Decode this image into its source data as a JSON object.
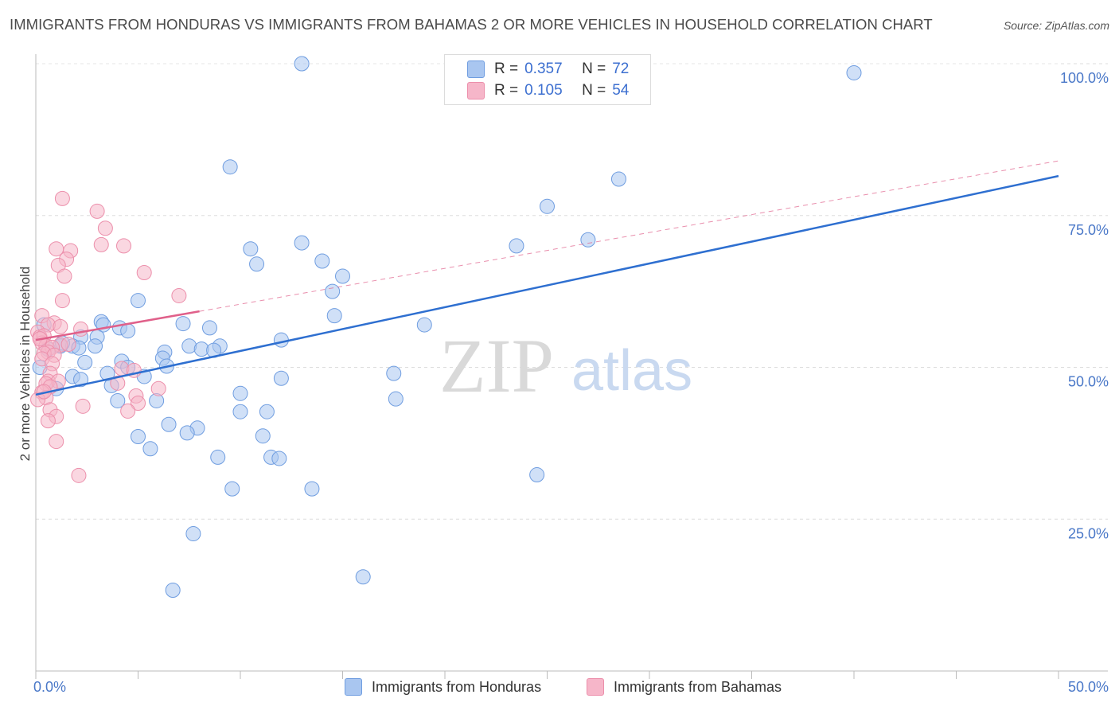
{
  "title": "IMMIGRANTS FROM HONDURAS VS IMMIGRANTS FROM BAHAMAS 2 OR MORE VEHICLES IN HOUSEHOLD CORRELATION CHART",
  "source": "Source: ZipAtlas.com",
  "watermark": {
    "zip": "ZIP",
    "atlas": "atlas"
  },
  "legend": {
    "r_label": "R =",
    "n_label": "N =",
    "rows": [
      {
        "r": "0.357",
        "n": "72"
      },
      {
        "r": "0.105",
        "n": "54"
      }
    ]
  },
  "colors": {
    "honduras_fill": "#a9c6f0",
    "honduras_stroke": "#6f9de0",
    "honduras_line": "#2e6fd0",
    "bahamas_fill": "#f6b6c9",
    "bahamas_stroke": "#ec8fab",
    "bahamas_line": "#e0608a",
    "tick_text": "#4a78c8"
  },
  "chart_data": {
    "type": "scatter",
    "title": "IMMIGRANTS FROM HONDURAS VS IMMIGRANTS FROM BAHAMAS 2 OR MORE VEHICLES IN HOUSEHOLD CORRELATION CHART",
    "xlabel": "",
    "ylabel": "2 or more Vehicles in Household",
    "xlim": [
      0,
      50
    ],
    "ylim": [
      0,
      105
    ],
    "x_tick_labels": [
      "0.0%",
      "50.0%"
    ],
    "y_ticks": [
      25,
      50,
      75,
      100
    ],
    "y_tick_labels": [
      "25.0%",
      "50.0%",
      "75.0%",
      "100.0%"
    ],
    "grid": true,
    "series": [
      {
        "name": "Immigrants from Honduras",
        "r": 0.357,
        "n": 72,
        "trend": {
          "x": [
            0,
            50
          ],
          "y": [
            45.5,
            81.5
          ],
          "style": "solid"
        },
        "points": [
          [
            13,
            100
          ],
          [
            40,
            98.5
          ],
          [
            9.5,
            83
          ],
          [
            28.5,
            81
          ],
          [
            25,
            76.5
          ],
          [
            27,
            71
          ],
          [
            13,
            70.5
          ],
          [
            23.5,
            70
          ],
          [
            10.5,
            69.5
          ],
          [
            14,
            67.5
          ],
          [
            10.8,
            67
          ],
          [
            15,
            65
          ],
          [
            14.5,
            62.5
          ],
          [
            5,
            61
          ],
          [
            14.6,
            58.5
          ],
          [
            3.2,
            57.5
          ],
          [
            7.2,
            57.2
          ],
          [
            3.3,
            57
          ],
          [
            4.1,
            56.5
          ],
          [
            8.5,
            56.5
          ],
          [
            19,
            57
          ],
          [
            4.5,
            56
          ],
          [
            2.2,
            55
          ],
          [
            3,
            55
          ],
          [
            12,
            54.5
          ],
          [
            2.9,
            53.5
          ],
          [
            7.5,
            53.5
          ],
          [
            9,
            53.5
          ],
          [
            8.1,
            53
          ],
          [
            8.7,
            52.8
          ],
          [
            1.2,
            53.5
          ],
          [
            1.8,
            53.5
          ],
          [
            2.1,
            53.2
          ],
          [
            6.3,
            52.5
          ],
          [
            4.2,
            51
          ],
          [
            6.2,
            51.5
          ],
          [
            2.4,
            50.8
          ],
          [
            6.4,
            50.2
          ],
          [
            4.5,
            50
          ],
          [
            3.5,
            49
          ],
          [
            5.3,
            48.5
          ],
          [
            12,
            48.2
          ],
          [
            17.5,
            49
          ],
          [
            1.8,
            48.5
          ],
          [
            2.2,
            48
          ],
          [
            3.7,
            47
          ],
          [
            1,
            46.5
          ],
          [
            10,
            45.7
          ],
          [
            5.9,
            44.5
          ],
          [
            17.6,
            44.8
          ],
          [
            4,
            44.5
          ],
          [
            10,
            42.7
          ],
          [
            11.3,
            42.7
          ],
          [
            6.5,
            40.6
          ],
          [
            7.9,
            40
          ],
          [
            7.4,
            39.2
          ],
          [
            5,
            38.6
          ],
          [
            11.1,
            38.7
          ],
          [
            5.6,
            36.6
          ],
          [
            8.9,
            35.2
          ],
          [
            11.5,
            35.2
          ],
          [
            11.9,
            35
          ],
          [
            24.5,
            32.3
          ],
          [
            9.6,
            30
          ],
          [
            13.5,
            30
          ],
          [
            7.7,
            22.6
          ],
          [
            16,
            15.5
          ],
          [
            6.7,
            13.3
          ],
          [
            0.4,
            57
          ],
          [
            0.2,
            50
          ],
          [
            0.6,
            53
          ],
          [
            1.3,
            54
          ]
        ]
      },
      {
        "name": "Immigrants from Bahamas",
        "r": 0.105,
        "n": 54,
        "trend": {
          "x": [
            0,
            50
          ],
          "y": [
            54.5,
            84
          ],
          "solid_until": 8
        },
        "points": [
          [
            1.3,
            77.8
          ],
          [
            3,
            75.7
          ],
          [
            3.4,
            72.9
          ],
          [
            3.2,
            70.2
          ],
          [
            4.3,
            70
          ],
          [
            1,
            69.5
          ],
          [
            1.7,
            69.2
          ],
          [
            1.5,
            67.8
          ],
          [
            1.1,
            66.8
          ],
          [
            5.3,
            65.6
          ],
          [
            1.4,
            65
          ],
          [
            7,
            61.8
          ],
          [
            1.3,
            61
          ],
          [
            0.3,
            58.5
          ],
          [
            0.9,
            57.3
          ],
          [
            0.6,
            57
          ],
          [
            1.2,
            56.7
          ],
          [
            2.2,
            56.3
          ],
          [
            0.1,
            55.8
          ],
          [
            0.2,
            55
          ],
          [
            0.4,
            55.2
          ],
          [
            0.3,
            54
          ],
          [
            1.2,
            53.7
          ],
          [
            0.5,
            53.5
          ],
          [
            0.8,
            53.3
          ],
          [
            1.6,
            53.8
          ],
          [
            0.6,
            52.5
          ],
          [
            0.4,
            52.3
          ],
          [
            0.9,
            52
          ],
          [
            0.3,
            51.4
          ],
          [
            0.8,
            50.6
          ],
          [
            4.2,
            49.8
          ],
          [
            0.7,
            49
          ],
          [
            4.8,
            49.5
          ],
          [
            0.6,
            47.7
          ],
          [
            1.1,
            47.7
          ],
          [
            0.5,
            47.3
          ],
          [
            4,
            47.4
          ],
          [
            0.7,
            46.8
          ],
          [
            6,
            46.5
          ],
          [
            0.3,
            45.9
          ],
          [
            4.9,
            45.3
          ],
          [
            0.5,
            45
          ],
          [
            0.1,
            44.7
          ],
          [
            5,
            44.1
          ],
          [
            2.3,
            43.6
          ],
          [
            0.7,
            43
          ],
          [
            4.5,
            42.8
          ],
          [
            1,
            41.9
          ],
          [
            0.6,
            41.2
          ],
          [
            1,
            37.8
          ],
          [
            2.1,
            32.2
          ],
          [
            0.2,
            54.7
          ],
          [
            0.4,
            46
          ]
        ]
      }
    ]
  },
  "bottom_legend": [
    {
      "label": "Immigrants from Honduras"
    },
    {
      "label": "Immigrants from Bahamas"
    }
  ]
}
